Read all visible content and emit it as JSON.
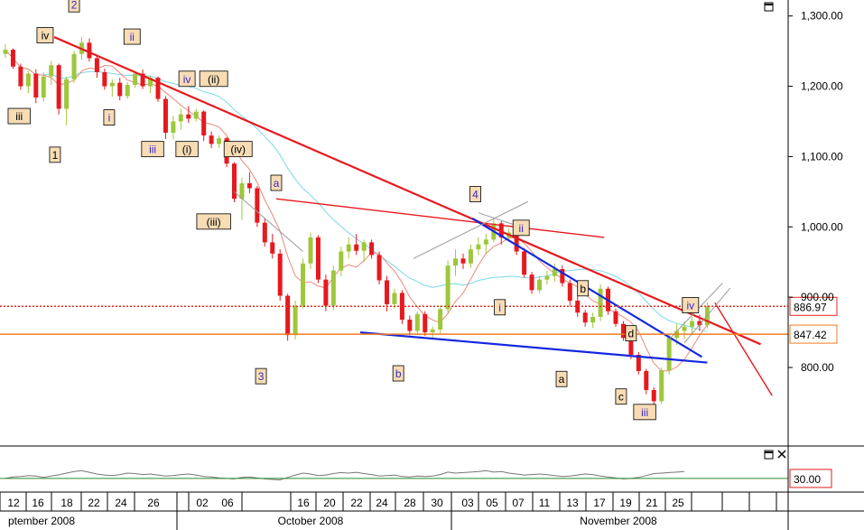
{
  "chart_data": {
    "type": "candlestick",
    "title": "",
    "xlabel": "",
    "ylabel": "",
    "ylim": [
      700,
      1340
    ],
    "y_ticks": [
      {
        "value": 1300,
        "label": "1,300.00"
      },
      {
        "value": 1200,
        "label": "1,200.00"
      },
      {
        "value": 1100,
        "label": "1,100.00"
      },
      {
        "value": 1000,
        "label": "1,000.00"
      },
      {
        "value": 900,
        "label": "900.00"
      },
      {
        "value": 800,
        "label": "800.00"
      }
    ],
    "x_ticks": [
      "12",
      "16",
      "18",
      "22",
      "24",
      "26",
      "02",
      "06",
      "16",
      "20",
      "22",
      "24",
      "28",
      "30",
      "03",
      "05",
      "07",
      "11",
      "13",
      "17",
      "19",
      "21",
      "25"
    ],
    "months": [
      "ptember 2008",
      "October 2008",
      "November 2008"
    ],
    "horizontal_levels": [
      {
        "value": 886.97,
        "label": "886.97",
        "style": "dotted",
        "color": "#e8261c"
      },
      {
        "value": 847.42,
        "label": "847.42",
        "style": "solid",
        "color": "#f07b20"
      }
    ],
    "indicator": {
      "level": 30,
      "label": "30.00",
      "color": "#2a8a2a"
    },
    "colors": {
      "up": "#9ec73b",
      "down": "#e6191e",
      "trendline_red": "#e6191e",
      "trendline_blue": "#1428e0",
      "ma_fast": "#e88a7a",
      "ma_slow": "#78d8e8"
    },
    "candles": [
      {
        "o": 1246,
        "h": 1260,
        "l": 1240,
        "c": 1252
      },
      {
        "o": 1252,
        "h": 1254,
        "l": 1225,
        "c": 1228
      },
      {
        "o": 1228,
        "h": 1232,
        "l": 1195,
        "c": 1200
      },
      {
        "o": 1200,
        "h": 1222,
        "l": 1190,
        "c": 1218
      },
      {
        "o": 1218,
        "h": 1224,
        "l": 1176,
        "c": 1184
      },
      {
        "o": 1184,
        "h": 1220,
        "l": 1178,
        "c": 1214
      },
      {
        "o": 1214,
        "h": 1236,
        "l": 1202,
        "c": 1230
      },
      {
        "o": 1230,
        "h": 1232,
        "l": 1160,
        "c": 1168
      },
      {
        "o": 1168,
        "h": 1214,
        "l": 1145,
        "c": 1210
      },
      {
        "o": 1210,
        "h": 1250,
        "l": 1205,
        "c": 1246
      },
      {
        "o": 1246,
        "h": 1270,
        "l": 1238,
        "c": 1262
      },
      {
        "o": 1262,
        "h": 1268,
        "l": 1235,
        "c": 1240
      },
      {
        "o": 1240,
        "h": 1244,
        "l": 1212,
        "c": 1220
      },
      {
        "o": 1220,
        "h": 1225,
        "l": 1195,
        "c": 1200
      },
      {
        "o": 1200,
        "h": 1210,
        "l": 1185,
        "c": 1205
      },
      {
        "o": 1205,
        "h": 1212,
        "l": 1180,
        "c": 1186
      },
      {
        "o": 1186,
        "h": 1206,
        "l": 1182,
        "c": 1202
      },
      {
        "o": 1202,
        "h": 1222,
        "l": 1198,
        "c": 1218
      },
      {
        "o": 1218,
        "h": 1224,
        "l": 1196,
        "c": 1200
      },
      {
        "o": 1200,
        "h": 1215,
        "l": 1190,
        "c": 1212
      },
      {
        "o": 1212,
        "h": 1214,
        "l": 1178,
        "c": 1182
      },
      {
        "o": 1182,
        "h": 1186,
        "l": 1125,
        "c": 1134
      },
      {
        "o": 1134,
        "h": 1158,
        "l": 1125,
        "c": 1150
      },
      {
        "o": 1150,
        "h": 1168,
        "l": 1138,
        "c": 1160
      },
      {
        "o": 1160,
        "h": 1172,
        "l": 1148,
        "c": 1154
      },
      {
        "o": 1154,
        "h": 1168,
        "l": 1150,
        "c": 1164
      },
      {
        "o": 1164,
        "h": 1166,
        "l": 1122,
        "c": 1130
      },
      {
        "o": 1130,
        "h": 1136,
        "l": 1112,
        "c": 1118
      },
      {
        "o": 1118,
        "h": 1130,
        "l": 1112,
        "c": 1126
      },
      {
        "o": 1126,
        "h": 1128,
        "l": 1085,
        "c": 1090
      },
      {
        "o": 1090,
        "h": 1092,
        "l": 1035,
        "c": 1040
      },
      {
        "o": 1040,
        "h": 1070,
        "l": 1010,
        "c": 1062
      },
      {
        "o": 1062,
        "h": 1078,
        "l": 1048,
        "c": 1055
      },
      {
        "o": 1055,
        "h": 1058,
        "l": 1000,
        "c": 1006
      },
      {
        "o": 1006,
        "h": 1012,
        "l": 972,
        "c": 978
      },
      {
        "o": 978,
        "h": 990,
        "l": 955,
        "c": 962
      },
      {
        "o": 962,
        "h": 968,
        "l": 895,
        "c": 902
      },
      {
        "o": 902,
        "h": 905,
        "l": 838,
        "c": 846
      },
      {
        "o": 846,
        "h": 895,
        "l": 840,
        "c": 888
      },
      {
        "o": 888,
        "h": 955,
        "l": 884,
        "c": 948
      },
      {
        "o": 948,
        "h": 992,
        "l": 940,
        "c": 985
      },
      {
        "o": 985,
        "h": 988,
        "l": 920,
        "c": 925
      },
      {
        "o": 925,
        "h": 932,
        "l": 880,
        "c": 888
      },
      {
        "o": 888,
        "h": 945,
        "l": 882,
        "c": 938
      },
      {
        "o": 938,
        "h": 972,
        "l": 930,
        "c": 965
      },
      {
        "o": 965,
        "h": 985,
        "l": 955,
        "c": 975
      },
      {
        "o": 975,
        "h": 990,
        "l": 960,
        "c": 966
      },
      {
        "o": 966,
        "h": 982,
        "l": 950,
        "c": 978
      },
      {
        "o": 978,
        "h": 982,
        "l": 955,
        "c": 960
      },
      {
        "o": 960,
        "h": 965,
        "l": 918,
        "c": 924
      },
      {
        "o": 924,
        "h": 930,
        "l": 880,
        "c": 890
      },
      {
        "o": 890,
        "h": 912,
        "l": 884,
        "c": 906
      },
      {
        "o": 906,
        "h": 910,
        "l": 862,
        "c": 868
      },
      {
        "o": 868,
        "h": 874,
        "l": 846,
        "c": 852
      },
      {
        "o": 852,
        "h": 880,
        "l": 848,
        "c": 876
      },
      {
        "o": 876,
        "h": 880,
        "l": 845,
        "c": 850
      },
      {
        "o": 850,
        "h": 858,
        "l": 842,
        "c": 854
      },
      {
        "o": 854,
        "h": 888,
        "l": 848,
        "c": 883
      },
      {
        "o": 883,
        "h": 952,
        "l": 878,
        "c": 945
      },
      {
        "o": 945,
        "h": 968,
        "l": 930,
        "c": 955
      },
      {
        "o": 955,
        "h": 962,
        "l": 940,
        "c": 948
      },
      {
        "o": 948,
        "h": 975,
        "l": 942,
        "c": 968
      },
      {
        "o": 968,
        "h": 985,
        "l": 960,
        "c": 975
      },
      {
        "o": 975,
        "h": 990,
        "l": 962,
        "c": 982
      },
      {
        "o": 982,
        "h": 1012,
        "l": 978,
        "c": 1005
      },
      {
        "o": 1005,
        "h": 1008,
        "l": 975,
        "c": 985
      },
      {
        "o": 985,
        "h": 998,
        "l": 980,
        "c": 992
      },
      {
        "o": 992,
        "h": 995,
        "l": 960,
        "c": 965
      },
      {
        "o": 965,
        "h": 970,
        "l": 928,
        "c": 932
      },
      {
        "o": 932,
        "h": 936,
        "l": 905,
        "c": 910
      },
      {
        "o": 910,
        "h": 930,
        "l": 906,
        "c": 925
      },
      {
        "o": 925,
        "h": 938,
        "l": 918,
        "c": 930
      },
      {
        "o": 930,
        "h": 948,
        "l": 922,
        "c": 940
      },
      {
        "o": 940,
        "h": 945,
        "l": 915,
        "c": 920
      },
      {
        "o": 920,
        "h": 925,
        "l": 888,
        "c": 895
      },
      {
        "o": 895,
        "h": 902,
        "l": 872,
        "c": 878
      },
      {
        "o": 878,
        "h": 882,
        "l": 858,
        "c": 864
      },
      {
        "o": 864,
        "h": 878,
        "l": 856,
        "c": 872
      },
      {
        "o": 872,
        "h": 918,
        "l": 866,
        "c": 912
      },
      {
        "o": 912,
        "h": 915,
        "l": 875,
        "c": 880
      },
      {
        "o": 880,
        "h": 884,
        "l": 858,
        "c": 862
      },
      {
        "o": 862,
        "h": 866,
        "l": 838,
        "c": 842
      },
      {
        "o": 842,
        "h": 848,
        "l": 812,
        "c": 818
      },
      {
        "o": 818,
        "h": 822,
        "l": 790,
        "c": 795
      },
      {
        "o": 795,
        "h": 798,
        "l": 762,
        "c": 768
      },
      {
        "o": 768,
        "h": 772,
        "l": 748,
        "c": 752
      },
      {
        "o": 752,
        "h": 800,
        "l": 748,
        "c": 796
      },
      {
        "o": 796,
        "h": 848,
        "l": 790,
        "c": 842
      },
      {
        "o": 842,
        "h": 862,
        "l": 832,
        "c": 852
      },
      {
        "o": 852,
        "h": 866,
        "l": 840,
        "c": 858
      },
      {
        "o": 858,
        "h": 872,
        "l": 846,
        "c": 866
      },
      {
        "o": 866,
        "h": 875,
        "l": 852,
        "c": 860
      },
      {
        "o": 860,
        "h": 892,
        "l": 856,
        "c": 887
      }
    ],
    "oscillator": [
      30,
      36,
      38,
      42,
      40,
      34,
      40,
      45,
      52,
      58,
      62,
      55,
      48,
      44,
      42,
      46,
      52,
      50,
      46,
      48,
      44,
      40,
      42,
      46,
      48,
      44,
      38,
      36,
      32,
      30,
      28,
      34,
      36,
      32,
      28,
      26,
      24,
      34,
      44,
      52,
      48,
      42,
      44,
      50,
      54,
      52,
      55,
      50,
      46,
      40,
      42,
      44,
      38,
      36,
      40,
      38,
      40,
      46,
      56,
      52,
      54,
      56,
      58,
      62,
      56,
      58,
      52,
      48,
      44,
      46,
      48,
      46,
      42,
      38,
      40,
      44,
      48,
      46,
      40,
      36,
      32,
      28,
      30,
      34,
      42,
      50,
      52,
      54,
      56,
      58
    ],
    "wave_labels": [
      {
        "text": "iv",
        "color": "#000"
      },
      {
        "text": "iii",
        "color": "#000"
      },
      {
        "text": "1",
        "color": "#000"
      },
      {
        "text": "2",
        "color": "#3a2ac8"
      },
      {
        "text": "ii",
        "color": "#3a2ac8"
      },
      {
        "text": "i",
        "color": "#3a2ac8"
      },
      {
        "text": "iv",
        "color": "#3a2ac8"
      },
      {
        "text": "(ii)",
        "color": "#000"
      },
      {
        "text": "iii",
        "color": "#3a2ac8"
      },
      {
        "text": "(i)",
        "color": "#000"
      },
      {
        "text": "(iv)",
        "color": "#000"
      },
      {
        "text": "(iii)",
        "color": "#000"
      },
      {
        "text": "a",
        "color": "#3a2ac8"
      },
      {
        "text": "3",
        "color": "#3a2ac8"
      },
      {
        "text": "b",
        "color": "#3a2ac8"
      },
      {
        "text": "4",
        "color": "#3a2ac8"
      },
      {
        "text": "ii",
        "color": "#3a2ac8"
      },
      {
        "text": "i",
        "color": "#3a2ac8"
      },
      {
        "text": "b",
        "color": "#000"
      },
      {
        "text": "a",
        "color": "#000"
      },
      {
        "text": "d",
        "color": "#000"
      },
      {
        "text": "c",
        "color": "#000"
      },
      {
        "text": "iii",
        "color": "#3a2ac8"
      },
      {
        "text": "iv",
        "color": "#3a2ac8"
      }
    ]
  }
}
